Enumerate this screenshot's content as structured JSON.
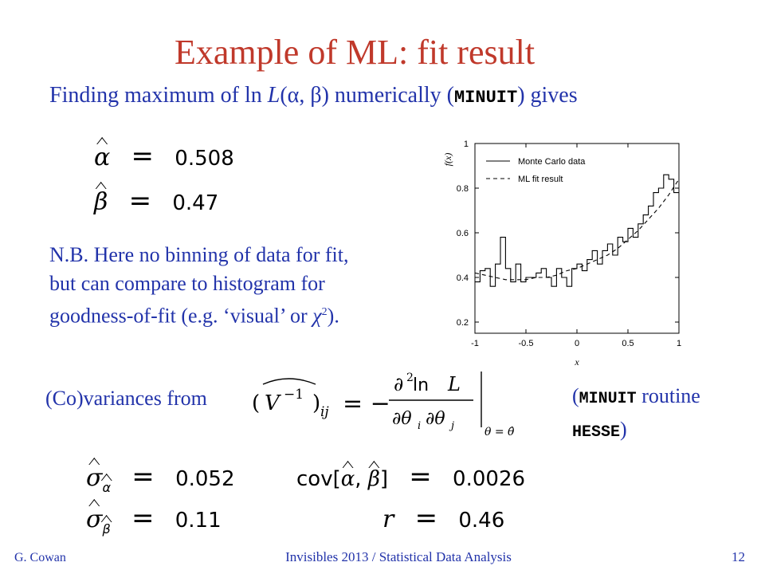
{
  "title": "Example of ML:  fit result",
  "intro": {
    "prefix": "Finding maximum of ln ",
    "L": "L",
    "args": "(α, β) numerically (",
    "minuit": "MINUIT",
    "suffix": ") gives"
  },
  "estimates": {
    "alpha_sym": "α",
    "alpha_value": "0.508",
    "beta_sym": "β",
    "beta_value": "0.47",
    "equals": "="
  },
  "nb": {
    "line1": "N.B.  Here no binning of data for fit,",
    "line2": "but can compare to histogram for",
    "line3_a": "goodness-of-fit (e.g. ‘visual’ or ",
    "chi": "χ",
    "sup": "2",
    "line3_b": ")."
  },
  "covariance": {
    "label": "(Co)variances from",
    "formula": {
      "lhs_V": "V",
      "lhs_exp": "−1",
      "lhs_idx": "ij",
      "equals": "= −",
      "num_d": "∂",
      "num_2": "2",
      "num_ln": " ln ",
      "num_L": "L",
      "den": "∂θ",
      "den_i": "i",
      "den_d": "∂θ",
      "den_j": "j",
      "eval": "θ = θ̂"
    },
    "note_open": "(",
    "note_minuit": "MINUIT",
    "note_routine": " routine",
    "note_hesse": "HESSE",
    "note_close": ")"
  },
  "results": {
    "sigma_sym": "σ",
    "sigma_alpha_value": "0.052",
    "sigma_beta_value": "0.11",
    "cov_label": "cov[",
    "cov_close": "]",
    "cov_value": "0.0026",
    "r_sym": "r",
    "r_value": "0.46",
    "alpha": "α",
    "beta": "β",
    "comma": ",",
    "equals": "="
  },
  "footer": {
    "author": "G. Cowan",
    "course": "Invisibles 2013 / Statistical Data Analysis",
    "page": "12"
  },
  "chart_data": {
    "type": "line",
    "ylabel": "f(x)",
    "xlabel": "x",
    "xlim": [
      -1,
      1
    ],
    "ylim": [
      0.15,
      1.0
    ],
    "xticks": [
      "-1",
      "-0.5",
      "0",
      "0.5",
      "1"
    ],
    "yticks": [
      "0.2",
      "0.4",
      "0.6",
      "0.8",
      "1"
    ],
    "legend": [
      "Monte Carlo data",
      "ML fit result"
    ],
    "legend_position": "top-left",
    "series": [
      {
        "name": "Monte Carlo data",
        "style": "histogram",
        "bin_edges": [
          -1.0,
          -0.95,
          -0.9,
          -0.85,
          -0.8,
          -0.75,
          -0.7,
          -0.65,
          -0.6,
          -0.55,
          -0.5,
          -0.45,
          -0.4,
          -0.35,
          -0.3,
          -0.25,
          -0.2,
          -0.15,
          -0.1,
          -0.05,
          0.0,
          0.05,
          0.1,
          0.15,
          0.2,
          0.25,
          0.3,
          0.35,
          0.4,
          0.45,
          0.5,
          0.55,
          0.6,
          0.65,
          0.7,
          0.75,
          0.8,
          0.85,
          0.9,
          0.95,
          1.0
        ],
        "values": [
          0.38,
          0.43,
          0.44,
          0.36,
          0.46,
          0.58,
          0.44,
          0.38,
          0.46,
          0.38,
          0.4,
          0.4,
          0.42,
          0.44,
          0.4,
          0.36,
          0.44,
          0.4,
          0.36,
          0.44,
          0.46,
          0.43,
          0.48,
          0.52,
          0.46,
          0.52,
          0.55,
          0.5,
          0.58,
          0.56,
          0.62,
          0.58,
          0.64,
          0.68,
          0.72,
          0.78,
          0.8,
          0.86,
          0.84,
          0.78
        ]
      },
      {
        "name": "ML fit result",
        "style": "dashed",
        "x": [
          -1.0,
          -0.9,
          -0.8,
          -0.7,
          -0.6,
          -0.5,
          -0.4,
          -0.3,
          -0.2,
          -0.1,
          0.0,
          0.1,
          0.2,
          0.3,
          0.4,
          0.5,
          0.6,
          0.7,
          0.8,
          0.9,
          1.0
        ],
        "y": [
          0.42,
          0.41,
          0.4,
          0.39,
          0.39,
          0.39,
          0.4,
          0.4,
          0.41,
          0.43,
          0.44,
          0.46,
          0.48,
          0.5,
          0.53,
          0.57,
          0.61,
          0.66,
          0.71,
          0.77,
          0.84
        ]
      }
    ]
  }
}
